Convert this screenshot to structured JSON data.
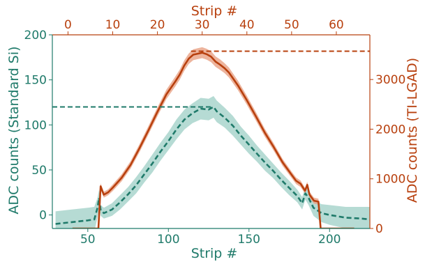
{
  "chart_data": {
    "type": "line",
    "colors": {
      "si": "#1f7a6a",
      "si_band": "#8fc7bd",
      "tilgad": "#b8400e",
      "tilgad_band": "#e8a184"
    },
    "axes": {
      "bottom": {
        "label": "Strip #",
        "range": [
          28,
          225
        ],
        "ticks": [
          50,
          100,
          150,
          200
        ]
      },
      "top": {
        "label": "Strip #",
        "range": [
          -3.5,
          67.5
        ],
        "ticks": [
          0,
          10,
          20,
          30,
          40,
          50,
          60
        ]
      },
      "left": {
        "label": "ADC counts (Standard Si)",
        "range": [
          -15,
          200
        ],
        "ticks": [
          0,
          50,
          100,
          150,
          200
        ]
      },
      "right": {
        "label": "ADC counts (TI-LGAD)",
        "range": [
          0,
          3900
        ],
        "ticks": [
          0,
          1000,
          2000,
          3000
        ]
      }
    },
    "grid": false,
    "series": [
      {
        "axis_x": "bottom",
        "axis_y": "left",
        "style": "dashed",
        "x": [
          30,
          40,
          50,
          54,
          56,
          57,
          58,
          60,
          65,
          70,
          75,
          80,
          85,
          90,
          95,
          100,
          105,
          110,
          115,
          120,
          125,
          128,
          130,
          135,
          140,
          145,
          150,
          155,
          160,
          165,
          170,
          175,
          180,
          183,
          185,
          187,
          190,
          195,
          200,
          210,
          220,
          225
        ],
        "values": [
          -10,
          -8,
          -6,
          -5,
          8,
          19,
          5,
          2,
          6,
          14,
          23,
          33,
          45,
          57,
          70,
          82,
          95,
          106,
          113,
          118,
          117,
          120,
          115,
          108,
          99,
          88,
          78,
          68,
          58,
          49,
          39,
          30,
          21,
          13,
          24,
          19,
          8,
          2,
          0,
          -3,
          -4,
          -5
        ],
        "band": [
          14,
          14,
          14,
          14,
          11,
          9,
          6,
          6,
          7,
          8,
          8,
          9,
          9,
          10,
          10,
          10,
          11,
          11,
          11,
          12,
          12,
          12,
          12,
          11,
          11,
          10,
          10,
          9,
          9,
          8,
          8,
          8,
          7,
          7,
          7,
          8,
          9,
          10,
          11,
          12,
          13,
          14
        ]
      },
      {
        "axis_x": "top",
        "axis_y": "right",
        "style": "solid",
        "x": [
          1,
          5,
          6.8,
          7.3,
          8,
          9,
          10,
          12,
          14,
          16,
          18,
          20,
          22,
          24,
          25,
          26,
          27,
          28,
          29,
          30,
          31,
          32,
          33,
          34,
          35,
          36,
          38,
          40,
          42,
          44,
          46,
          48,
          50,
          51,
          52,
          53,
          53.5,
          54,
          55,
          56,
          56.5,
          57,
          60,
          64
        ],
        "values": [
          0,
          0,
          0,
          850,
          680,
          730,
          820,
          1020,
          1280,
          1620,
          1980,
          2350,
          2700,
          2960,
          3100,
          3280,
          3420,
          3500,
          3520,
          3540,
          3510,
          3460,
          3360,
          3300,
          3230,
          3140,
          2880,
          2580,
          2260,
          1930,
          1640,
          1330,
          1080,
          960,
          900,
          760,
          880,
          680,
          560,
          540,
          0,
          0,
          0,
          0
        ],
        "band": [
          0,
          0,
          0,
          60,
          60,
          60,
          65,
          70,
          75,
          80,
          85,
          90,
          95,
          100,
          100,
          105,
          105,
          110,
          110,
          110,
          110,
          110,
          105,
          105,
          100,
          100,
          95,
          90,
          85,
          80,
          75,
          70,
          65,
          65,
          65,
          60,
          60,
          60,
          60,
          60,
          0,
          0,
          0,
          0
        ]
      }
    ],
    "reference_lines": [
      {
        "axis_y": "left",
        "y": 120,
        "x_from": 28,
        "x_to": 128,
        "style": "dashed",
        "color_key": "si"
      },
      {
        "axis_y": "right",
        "y": 3570,
        "x_from": 27.5,
        "x_to": 67.5,
        "style": "dashed",
        "color_key": "tilgad"
      }
    ]
  }
}
